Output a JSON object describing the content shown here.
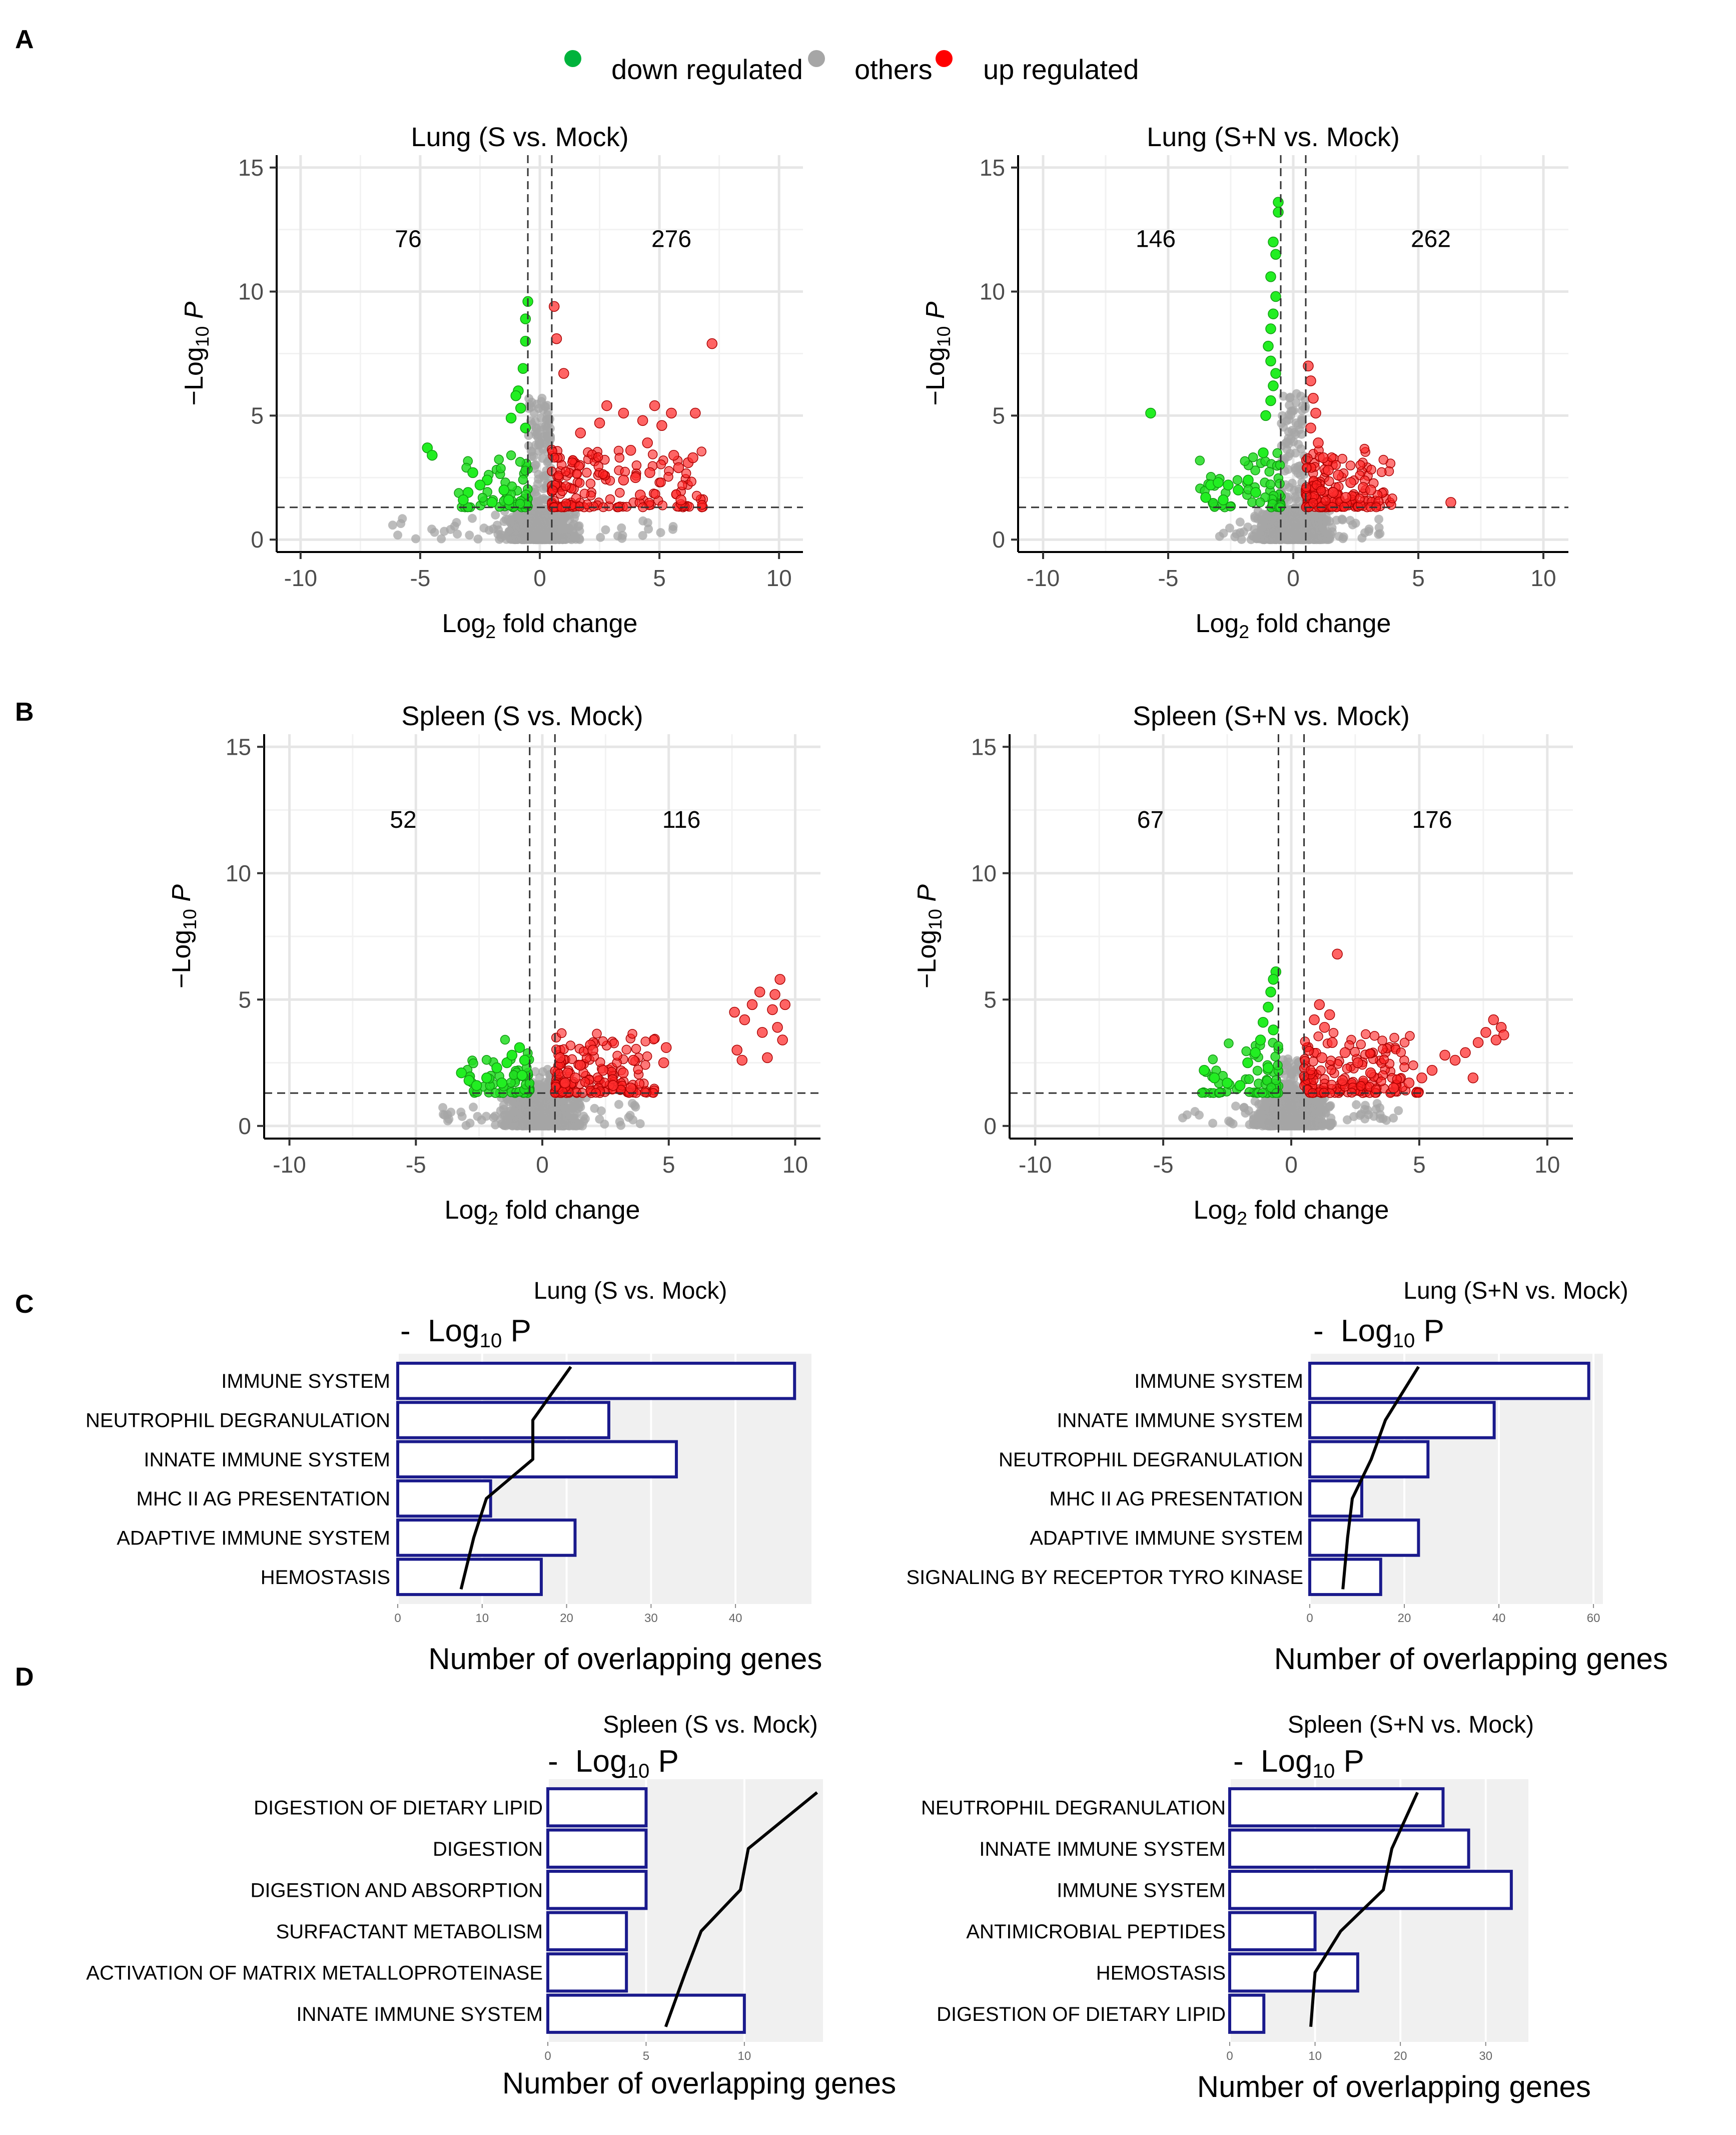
{
  "legend": {
    "items": [
      {
        "label": "down regulated",
        "color": "#00b33c"
      },
      {
        "label": "others",
        "color": "#a6a6a6"
      },
      {
        "label": "up regulated",
        "color": "#ff0000"
      }
    ]
  },
  "panel_labels": [
    "A",
    "B",
    "C",
    "D"
  ],
  "chart_data": [
    {
      "type": "scatter",
      "panel": "A",
      "title": "Lung (S vs. Mock)",
      "xlabel": "Log2 fold change",
      "ylabel": "-Log10 P",
      "xlim": [
        -11,
        11
      ],
      "ylim": [
        -0.5,
        15.5
      ],
      "xticks": [
        -10,
        -5,
        0,
        5,
        10
      ],
      "yticks": [
        0,
        5,
        10,
        15
      ],
      "fc_cutoff": 0.5,
      "p_cutoff": 1.3,
      "down_count": 76,
      "up_count": 276,
      "spread": {
        "down": 3,
        "up": 6.5,
        "max_y": 9.5
      },
      "down": [
        [
          -0.5,
          9.6
        ],
        [
          -0.6,
          8.9
        ],
        [
          -0.6,
          8.0
        ],
        [
          -0.7,
          6.9
        ],
        [
          -0.9,
          6.0
        ],
        [
          -1.0,
          5.8
        ],
        [
          -0.8,
          5.3
        ],
        [
          -0.6,
          4.5
        ],
        [
          -1.2,
          4.9
        ],
        [
          -4.7,
          3.7
        ],
        [
          -4.5,
          3.4
        ],
        [
          -2.8,
          2.7
        ],
        [
          -2.2,
          2.4
        ],
        [
          -3.0,
          1.9
        ],
        [
          -2.5,
          2.2
        ],
        [
          -1.5,
          2.0
        ],
        [
          -1.3,
          1.6
        ],
        [
          -3.2,
          1.6
        ],
        [
          -2.0,
          1.5
        ]
      ],
      "up": [
        [
          7.2,
          7.9
        ],
        [
          0.6,
          9.4
        ],
        [
          0.7,
          8.1
        ],
        [
          1.0,
          6.7
        ],
        [
          1.7,
          4.3
        ],
        [
          2.5,
          4.7
        ],
        [
          2.8,
          5.4
        ],
        [
          3.5,
          5.1
        ],
        [
          4.3,
          4.8
        ],
        [
          4.8,
          5.4
        ],
        [
          5.1,
          4.6
        ],
        [
          5.5,
          5.1
        ],
        [
          6.5,
          5.1
        ],
        [
          3.8,
          3.6
        ],
        [
          4.5,
          3.9
        ],
        [
          5.6,
          3.4
        ],
        [
          6.2,
          3.1
        ],
        [
          5.8,
          2.9
        ],
        [
          4.6,
          2.7
        ],
        [
          4.0,
          2.5
        ],
        [
          3.5,
          2.4
        ],
        [
          5.9,
          1.6
        ],
        [
          4.2,
          1.8
        ],
        [
          6.4,
          3.3
        ]
      ]
    },
    {
      "type": "scatter",
      "panel": "A",
      "title": "Lung (S+N vs. Mock)",
      "xlabel": "Log2 fold change",
      "ylabel": "-Log10 P",
      "xlim": [
        -11,
        11
      ],
      "ylim": [
        -0.5,
        15.5
      ],
      "xticks": [
        -10,
        -5,
        0,
        5,
        10
      ],
      "yticks": [
        0,
        5,
        10,
        15
      ],
      "fc_cutoff": 0.5,
      "p_cutoff": 1.3,
      "down_count": 146,
      "up_count": 262,
      "spread": {
        "down": 3.5,
        "up": 3.5,
        "max_y": 13.5
      },
      "down": [
        [
          -0.6,
          13.6
        ],
        [
          -0.6,
          13.2
        ],
        [
          -0.8,
          12.0
        ],
        [
          -0.7,
          11.5
        ],
        [
          -0.9,
          10.6
        ],
        [
          -0.7,
          9.8
        ],
        [
          -0.8,
          9.1
        ],
        [
          -0.9,
          8.5
        ],
        [
          -1.0,
          7.8
        ],
        [
          -0.9,
          7.2
        ],
        [
          -0.7,
          6.7
        ],
        [
          -0.8,
          6.2
        ],
        [
          -0.9,
          5.6
        ],
        [
          -1.1,
          5.0
        ],
        [
          -5.7,
          5.1
        ],
        [
          -3.3,
          2.2
        ],
        [
          -3.0,
          2.3
        ],
        [
          -2.6,
          2.2
        ],
        [
          -2.2,
          2.0
        ],
        [
          -1.8,
          2.4
        ],
        [
          -1.5,
          1.9
        ],
        [
          -3.5,
          1.7
        ],
        [
          -2.8,
          1.6
        ],
        [
          -1.2,
          3.5
        ]
      ],
      "up": [
        [
          0.6,
          7.0
        ],
        [
          0.7,
          6.4
        ],
        [
          0.8,
          5.7
        ],
        [
          0.9,
          5.1
        ],
        [
          0.7,
          4.5
        ],
        [
          1.2,
          3.3
        ],
        [
          1.4,
          2.8
        ],
        [
          1.8,
          2.6
        ],
        [
          2.3,
          2.3
        ],
        [
          2.8,
          2.1
        ],
        [
          3.1,
          2.0
        ],
        [
          6.3,
          1.5
        ],
        [
          1.6,
          1.9
        ],
        [
          2.1,
          1.7
        ],
        [
          1.0,
          3.9
        ]
      ]
    },
    {
      "type": "scatter",
      "panel": "B",
      "title": "Spleen (S vs. Mock)",
      "xlabel": "Log2 fold change",
      "ylabel": "-Log10 P",
      "xlim": [
        -11,
        11
      ],
      "ylim": [
        -0.5,
        15.5
      ],
      "xticks": [
        -10,
        -5,
        0,
        5,
        10
      ],
      "yticks": [
        0,
        5,
        10,
        15
      ],
      "fc_cutoff": 0.5,
      "p_cutoff": 1.3,
      "down_count": 52,
      "up_count": 116,
      "spread": {
        "down": 2.5,
        "up": 4,
        "max_y": 3.8
      },
      "down": [
        [
          -3.2,
          2.1
        ],
        [
          -2.9,
          1.8
        ],
        [
          -2.6,
          1.6
        ],
        [
          -2.2,
          1.9
        ],
        [
          -1.8,
          2.3
        ],
        [
          -1.4,
          2.5
        ],
        [
          -1.2,
          2.8
        ],
        [
          -0.9,
          3.1
        ],
        [
          -0.7,
          2.6
        ],
        [
          -1.6,
          1.7
        ],
        [
          -0.8,
          2.0
        ]
      ],
      "up": [
        [
          9.4,
          5.8
        ],
        [
          9.2,
          5.2
        ],
        [
          9.6,
          4.8
        ],
        [
          9.1,
          4.6
        ],
        [
          8.6,
          5.3
        ],
        [
          8.3,
          4.8
        ],
        [
          7.6,
          4.5
        ],
        [
          8.0,
          4.2
        ],
        [
          9.3,
          3.9
        ],
        [
          9.5,
          3.4
        ],
        [
          8.7,
          3.7
        ],
        [
          7.7,
          3.0
        ],
        [
          7.9,
          2.6
        ],
        [
          8.9,
          2.7
        ],
        [
          4.9,
          3.1
        ],
        [
          4.8,
          2.5
        ],
        [
          3.6,
          2.6
        ],
        [
          3.2,
          2.1
        ],
        [
          2.4,
          2.2
        ],
        [
          1.9,
          3.2
        ],
        [
          2.0,
          3.0
        ],
        [
          1.5,
          2.4
        ],
        [
          1.0,
          2.1
        ],
        [
          0.7,
          2.7
        ],
        [
          0.9,
          1.7
        ],
        [
          1.3,
          1.9
        ],
        [
          2.8,
          1.6
        ],
        [
          3.5,
          1.5
        ]
      ]
    },
    {
      "type": "scatter",
      "panel": "B",
      "title": "Spleen (S+N vs. Mock)",
      "xlabel": "Log2 fold change",
      "ylabel": "-Log10 P",
      "xlim": [
        -11,
        11
      ],
      "ylim": [
        -0.5,
        15.5
      ],
      "xticks": [
        -10,
        -5,
        0,
        5,
        10
      ],
      "yticks": [
        0,
        5,
        10,
        15
      ],
      "fc_cutoff": 0.5,
      "p_cutoff": 1.3,
      "down_count": 67,
      "up_count": 176,
      "spread": {
        "down": 3,
        "up": 4.5,
        "max_y": 4.5
      },
      "down": [
        [
          -0.6,
          6.1
        ],
        [
          -0.7,
          5.8
        ],
        [
          -0.8,
          5.3
        ],
        [
          -0.9,
          4.7
        ],
        [
          -1.1,
          4.1
        ],
        [
          -1.2,
          3.4
        ],
        [
          -1.4,
          2.9
        ],
        [
          -1.7,
          2.5
        ],
        [
          -3.4,
          2.2
        ],
        [
          -3.0,
          1.9
        ],
        [
          -2.5,
          1.7
        ],
        [
          -2.0,
          1.6
        ],
        [
          -0.7,
          3.8
        ],
        [
          -0.9,
          2.3
        ]
      ],
      "up": [
        [
          1.8,
          6.8
        ],
        [
          1.1,
          4.8
        ],
        [
          1.5,
          4.4
        ],
        [
          0.9,
          4.2
        ],
        [
          1.3,
          3.9
        ],
        [
          1.6,
          3.3
        ],
        [
          2.1,
          2.9
        ],
        [
          2.6,
          2.5
        ],
        [
          3.1,
          2.1
        ],
        [
          2.0,
          1.8
        ],
        [
          1.2,
          2.7
        ],
        [
          7.9,
          4.2
        ],
        [
          8.2,
          3.9
        ],
        [
          8.3,
          3.6
        ],
        [
          7.6,
          3.7
        ],
        [
          8.0,
          3.4
        ],
        [
          7.3,
          3.3
        ],
        [
          6.8,
          2.9
        ],
        [
          6.4,
          2.6
        ],
        [
          6.0,
          2.8
        ],
        [
          5.5,
          2.2
        ],
        [
          5.1,
          1.9
        ],
        [
          4.6,
          1.7
        ],
        [
          4.0,
          1.5
        ],
        [
          7.1,
          1.9
        ]
      ]
    },
    {
      "type": "bar",
      "panel": "C",
      "title": "Lung (S vs. Mock)",
      "overlay_label_prefix": "-",
      "overlay_label": "Log10 P",
      "xlabel": "Number of overlapping genes",
      "xticks": [
        0,
        10,
        20,
        30,
        40
      ],
      "xlim": [
        0,
        49
      ],
      "categories": [
        "IMMUNE SYSTEM",
        "NEUTROPHIL DEGRANULATION",
        "INNATE IMMUNE SYSTEM",
        "MHC II AG PRESENTATION",
        "ADAPTIVE IMMUNE SYSTEM",
        "HEMOSTASIS"
      ],
      "values": [
        47,
        25,
        33,
        11,
        21,
        17
      ],
      "series_line": {
        "name": "-Log10 P",
        "values": [
          20.5,
          16,
          16,
          10.5,
          9,
          7.5
        ]
      }
    },
    {
      "type": "bar",
      "panel": "C",
      "title": "Lung (S+N vs. Mock)",
      "overlay_label_prefix": "-",
      "overlay_label": "Log10 P",
      "xlabel": "Number of overlapping genes",
      "xticks": [
        0,
        20,
        40,
        60
      ],
      "xlim": [
        0,
        62
      ],
      "categories": [
        "IMMUNE SYSTEM",
        "INNATE IMMUNE SYSTEM",
        "NEUTROPHIL DEGRANULATION",
        "MHC II AG PRESENTATION",
        "ADAPTIVE IMMUNE SYSTEM",
        "SIGNALING BY RECEPTOR TYRO KINASE"
      ],
      "values": [
        59,
        39,
        25,
        11,
        23,
        15
      ],
      "series_line": {
        "name": "-Log10 P",
        "values": [
          23,
          16,
          13,
          9,
          8,
          7
        ]
      }
    },
    {
      "type": "bar",
      "panel": "D",
      "title": "Spleen (S vs. Mock)",
      "overlay_label_prefix": "-",
      "overlay_label": "Log10 P",
      "xlabel": "Number of overlapping genes",
      "xticks": [
        0,
        5,
        10
      ],
      "xlim": [
        0,
        14
      ],
      "categories": [
        "DIGESTION OF DIETARY LIPID",
        "DIGESTION",
        "DIGESTION AND ABSORPTION",
        "SURFACTANT METABOLISM",
        "ACTIVATION OF MATRIX METALLOPROTEINASE",
        "INNATE IMMUNE SYSTEM"
      ],
      "values": [
        5,
        5,
        5,
        4,
        4,
        10
      ],
      "series_line": {
        "name": "-Log10 P",
        "values": [
          13.7,
          10.2,
          9.8,
          7.8,
          7,
          6
        ]
      }
    },
    {
      "type": "bar",
      "panel": "D",
      "title": "Spleen (S+N vs. Mock)",
      "overlay_label_prefix": "-",
      "overlay_label": "Log10 P",
      "xlabel": "Number of overlapping genes",
      "xticks": [
        0,
        10,
        20,
        30
      ],
      "xlim": [
        0,
        35
      ],
      "categories": [
        "NEUTROPHIL DEGRANULATION",
        "INNATE IMMUNE SYSTEM",
        "IMMUNE SYSTEM",
        "ANTIMICROBIAL PEPTIDES",
        "HEMOSTASIS",
        "DIGESTION OF DIETARY LIPID"
      ],
      "values": [
        25,
        28,
        33,
        10,
        15,
        4
      ],
      "series_line": {
        "name": "-Log10 P",
        "values": [
          22,
          19,
          18,
          13,
          10,
          9.5
        ]
      }
    }
  ]
}
